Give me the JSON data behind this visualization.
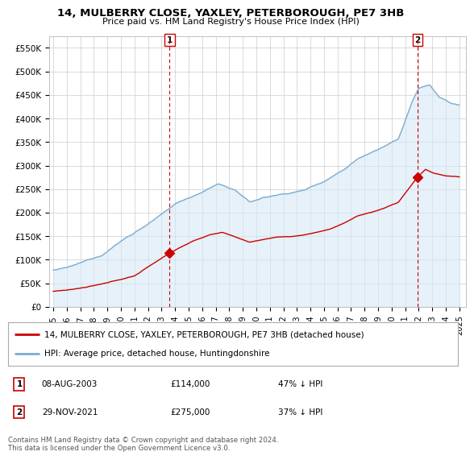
{
  "title": "14, MULBERRY CLOSE, YAXLEY, PETERBOROUGH, PE7 3HB",
  "subtitle": "Price paid vs. HM Land Registry's House Price Index (HPI)",
  "ylabel_ticks": [
    "£0",
    "£50K",
    "£100K",
    "£150K",
    "£200K",
    "£250K",
    "£300K",
    "£350K",
    "£400K",
    "£450K",
    "£500K",
    "£550K"
  ],
  "ytick_values": [
    0,
    50000,
    100000,
    150000,
    200000,
    250000,
    300000,
    350000,
    400000,
    450000,
    500000,
    550000
  ],
  "ylim": [
    0,
    575000
  ],
  "red_line_color": "#cc0000",
  "blue_line_color": "#7aadd4",
  "blue_fill_color": "#d6e8f5",
  "marker_color": "#cc0000",
  "vline_color": "#cc0000",
  "grid_color": "#cccccc",
  "bg_color": "#ffffff",
  "legend_label_red": "14, MULBERRY CLOSE, YAXLEY, PETERBOROUGH, PE7 3HB (detached house)",
  "legend_label_blue": "HPI: Average price, detached house, Huntingdonshire",
  "annotation1_date": "08-AUG-2003",
  "annotation1_price": "£114,000",
  "annotation1_pct": "47% ↓ HPI",
  "annotation2_date": "29-NOV-2021",
  "annotation2_price": "£275,000",
  "annotation2_pct": "37% ↓ HPI",
  "footnote": "Contains HM Land Registry data © Crown copyright and database right 2024.\nThis data is licensed under the Open Government Licence v3.0.",
  "sale1_year": 2003.6,
  "sale1_price": 114000,
  "sale2_year": 2021.9,
  "sale2_price": 275000
}
